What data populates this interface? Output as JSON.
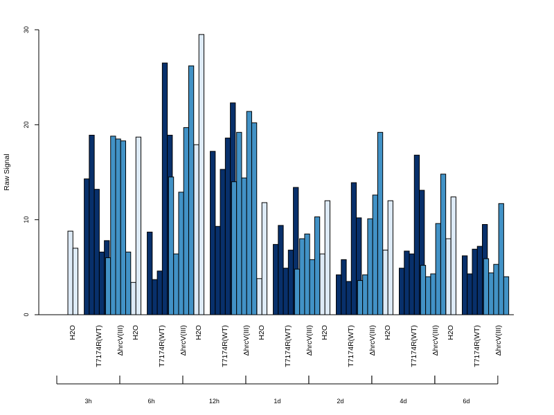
{
  "chart_data": {
    "type": "bar",
    "ylabel": "Raw Signal",
    "ylim": [
      0,
      30
    ],
    "yticks": [
      "0",
      "10",
      "20",
      "30"
    ],
    "grid": false,
    "colors": {
      "H2O": "#deebf7",
      "T7174R(WT)": "#08306b",
      "ΔhrcV(III)": "#4292c6"
    },
    "groups": [
      {
        "label": "3h",
        "subgroups": [
          {
            "label": "H2O",
            "values": [
              0,
              8.8,
              7.0
            ]
          },
          {
            "label": "T7174R(WT)",
            "values": [
              14.3,
              18.9,
              13.2,
              6.6,
              7.8
            ]
          },
          {
            "label": "ΔhrcV(III)",
            "values": [
              6.0,
              18.8,
              18.5,
              18.3,
              6.6
            ]
          }
        ]
      },
      {
        "label": "6h",
        "subgroups": [
          {
            "label": "H2O",
            "values": [
              0,
              3.4,
              18.7
            ]
          },
          {
            "label": "T7174R(WT)",
            "values": [
              8.7,
              3.7,
              4.6,
              26.5,
              18.9
            ]
          },
          {
            "label": "ΔhrcV(III)",
            "values": [
              14.5,
              6.4,
              12.9,
              19.7,
              26.2
            ]
          }
        ]
      },
      {
        "label": "12h",
        "subgroups": [
          {
            "label": "H2O",
            "values": [
              0,
              17.9,
              29.5
            ]
          },
          {
            "label": "T7174R(WT)",
            "values": [
              17.2,
              9.3,
              15.3,
              18.6,
              22.3
            ]
          },
          {
            "label": "ΔhrcV(III)",
            "values": [
              14.0,
              19.2,
              14.4,
              21.4,
              20.2
            ]
          }
        ]
      },
      {
        "label": "1d",
        "subgroups": [
          {
            "label": "H2O",
            "values": [
              0,
              3.8,
              11.8
            ]
          },
          {
            "label": "T7174R(WT)",
            "values": [
              7.4,
              9.4,
              4.9,
              6.8,
              13.4
            ]
          },
          {
            "label": "ΔhrcV(III)",
            "values": [
              4.8,
              8.0,
              8.5,
              5.8,
              10.3
            ]
          }
        ]
      },
      {
        "label": "2d",
        "subgroups": [
          {
            "label": "H2O",
            "values": [
              0,
              6.4,
              12.0
            ]
          },
          {
            "label": "T7174R(WT)",
            "values": [
              4.2,
              5.8,
              3.5,
              13.9,
              10.2
            ]
          },
          {
            "label": "ΔhrcV(III)",
            "values": [
              3.6,
              4.2,
              10.1,
              12.6,
              19.2
            ]
          }
        ]
      },
      {
        "label": "4d",
        "subgroups": [
          {
            "label": "H2O",
            "values": [
              0,
              6.8,
              12.0
            ]
          },
          {
            "label": "T7174R(WT)",
            "values": [
              4.9,
              6.7,
              6.4,
              16.8,
              13.1
            ]
          },
          {
            "label": "ΔhrcV(III)",
            "values": [
              5.2,
              4.0,
              4.3,
              9.6,
              14.8
            ]
          }
        ]
      },
      {
        "label": "6d",
        "subgroups": [
          {
            "label": "H2O",
            "values": [
              0,
              8.0,
              12.4
            ]
          },
          {
            "label": "T7174R(WT)",
            "values": [
              6.2,
              4.3,
              6.9,
              7.2,
              9.5
            ]
          },
          {
            "label": "ΔhrcV(III)",
            "values": [
              5.9,
              4.4,
              5.3,
              11.7,
              4.0
            ]
          }
        ]
      }
    ]
  }
}
